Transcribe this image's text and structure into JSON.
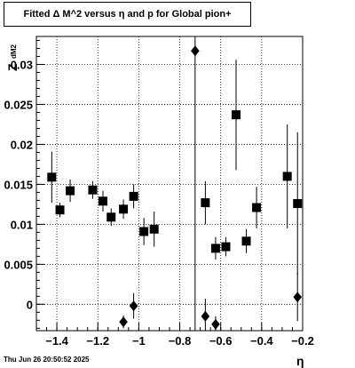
{
  "title": "Fitted Δ M^2 versus η and p for Global pion+",
  "footer": "Thu Jun 26 20:50:52 2025",
  "chart_data": {
    "type": "scatter",
    "xlabel": "η",
    "ylabel_main": "Z",
    "ylabel_sub": "dM2",
    "xlim": [
      -1.5,
      -0.2
    ],
    "ylim": [
      -0.0033,
      0.0335
    ],
    "grid": true,
    "x_ticks": [
      -1.4,
      -1.2,
      -1.0,
      -0.8,
      -0.6,
      -0.4,
      -0.2
    ],
    "x_tick_labels": [
      "−1.4",
      "−1.2",
      "−1",
      "−0.8",
      "−0.6",
      "−0.4",
      "−0.2"
    ],
    "y_ticks": [
      0,
      0.005,
      0.01,
      0.015,
      0.02,
      0.025,
      0.03
    ],
    "y_tick_labels": [
      "0",
      "0.005",
      "0.01",
      "0.015",
      "0.02",
      "0.025",
      "0.03"
    ],
    "series": [
      {
        "marker": "square",
        "color": "#000000",
        "points": [
          {
            "x": -1.425,
            "y": 0.0159,
            "err": 0.0032
          },
          {
            "x": -1.385,
            "y": 0.0118,
            "err": 0.0009
          },
          {
            "x": -1.335,
            "y": 0.0142,
            "err": 0.0014
          },
          {
            "x": -1.225,
            "y": 0.0143,
            "err": 0.0011
          },
          {
            "x": -1.175,
            "y": 0.0129,
            "err": 0.0013
          },
          {
            "x": -1.135,
            "y": 0.0109,
            "err": 0.0011
          },
          {
            "x": -1.075,
            "y": 0.0119,
            "err": 0.0012
          },
          {
            "x": -1.025,
            "y": 0.0135,
            "err": 0.0015
          },
          {
            "x": -0.975,
            "y": 0.0091,
            "err": 0.0017
          },
          {
            "x": -0.925,
            "y": 0.0094,
            "err": 0.0022
          },
          {
            "x": -0.675,
            "y": 0.0127,
            "err": 0.0027
          },
          {
            "x": -0.625,
            "y": 0.007,
            "err": 0.0014
          },
          {
            "x": -0.575,
            "y": 0.0072,
            "err": 0.0012
          },
          {
            "x": -0.525,
            "y": 0.0237,
            "err": 0.0069
          },
          {
            "x": -0.475,
            "y": 0.0079,
            "err": 0.0015
          },
          {
            "x": -0.425,
            "y": 0.0121,
            "err": 0.0026
          },
          {
            "x": -0.275,
            "y": 0.016,
            "err": 0.0065
          },
          {
            "x": -0.225,
            "y": 0.0126,
            "err": 0.0089
          }
        ]
      },
      {
        "marker": "diamond",
        "color": "#000000",
        "points": [
          {
            "x": -1.075,
            "y": -0.0022,
            "err": 0.0008
          },
          {
            "x": -1.025,
            "y": -0.0002,
            "err": 0.0016
          },
          {
            "x": -0.725,
            "y": 0.0317,
            "err": 0.036
          },
          {
            "x": -0.675,
            "y": -0.0015,
            "err": 0.0022
          },
          {
            "x": -0.625,
            "y": -0.0025,
            "err": 0.001
          },
          {
            "x": -0.225,
            "y": 0.0009,
            "err": 0.003
          }
        ]
      }
    ]
  }
}
